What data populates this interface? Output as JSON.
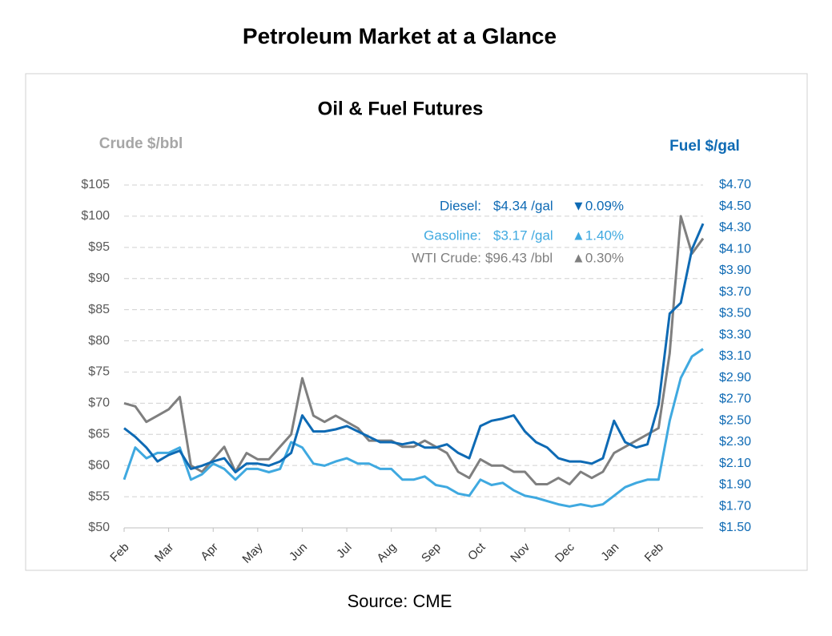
{
  "title": "Petroleum Market at a Glance",
  "source": "Source: CME",
  "chart_data": {
    "type": "line",
    "title": "Oil & Fuel Futures",
    "y_label": "Crude $/bbl",
    "y2_label": "Fuel $/gal",
    "categories": [
      "Feb",
      null,
      null,
      null,
      "Mar",
      null,
      null,
      null,
      "Apr",
      null,
      null,
      null,
      "May",
      null,
      null,
      null,
      "Jun",
      null,
      null,
      null,
      "Jul",
      null,
      null,
      null,
      "Aug",
      null,
      null,
      null,
      "Sep",
      null,
      null,
      null,
      "Oct",
      null,
      null,
      null,
      "Nov",
      null,
      null,
      null,
      "Dec",
      null,
      null,
      null,
      "Jan",
      null,
      null,
      null,
      "Feb",
      null,
      null,
      null,
      null
    ],
    "ylim": [
      50,
      105
    ],
    "yticks": [
      {
        "value": 50,
        "label": "$50"
      },
      {
        "value": 55,
        "label": "$55"
      },
      {
        "value": 60,
        "label": "$60"
      },
      {
        "value": 65,
        "label": "$65"
      },
      {
        "value": 70,
        "label": "$70"
      },
      {
        "value": 75,
        "label": "$75"
      },
      {
        "value": 80,
        "label": "$80"
      },
      {
        "value": 85,
        "label": "$85"
      },
      {
        "value": 90,
        "label": "$90"
      },
      {
        "value": 95,
        "label": "$95"
      },
      {
        "value": 100,
        "label": "$100"
      },
      {
        "value": 105,
        "label": "$105"
      }
    ],
    "y2lim": [
      1.5,
      4.7
    ],
    "y2ticks": [
      {
        "value": 1.5,
        "label": "$1.50"
      },
      {
        "value": 1.7,
        "label": "$1.70"
      },
      {
        "value": 1.9,
        "label": "$1.90"
      },
      {
        "value": 2.1,
        "label": "$2.10"
      },
      {
        "value": 2.3,
        "label": "$2.30"
      },
      {
        "value": 2.5,
        "label": "$2.50"
      },
      {
        "value": 2.7,
        "label": "$2.70"
      },
      {
        "value": 2.9,
        "label": "$2.90"
      },
      {
        "value": 3.1,
        "label": "$3.10"
      },
      {
        "value": 3.3,
        "label": "$3.30"
      },
      {
        "value": 3.5,
        "label": "$3.50"
      },
      {
        "value": 3.7,
        "label": "$3.70"
      },
      {
        "value": 3.9,
        "label": "$3.90"
      },
      {
        "value": 4.1,
        "label": "$4.10"
      },
      {
        "value": 4.3,
        "label": "$4.30"
      },
      {
        "value": 4.5,
        "label": "$4.50"
      },
      {
        "value": 4.7,
        "label": "$4.70"
      }
    ],
    "grid": true,
    "y_label_color": "#a6a6a6",
    "y2_label_color": "#0e6ab4",
    "y2_tick_color": "#0e6ab4",
    "series": [
      {
        "name": "Diesel:",
        "value_label": "$4.34 /gal",
        "change": "▼0.09%",
        "color": "#0e6ab4",
        "axis": "y2",
        "values": [
          2.43,
          2.35,
          2.25,
          2.12,
          2.18,
          2.22,
          2.05,
          2.08,
          2.12,
          2.15,
          2.02,
          2.1,
          2.1,
          2.08,
          2.12,
          2.2,
          2.55,
          2.4,
          2.4,
          2.42,
          2.45,
          2.4,
          2.35,
          2.3,
          2.3,
          2.28,
          2.3,
          2.25,
          2.25,
          2.28,
          2.2,
          2.15,
          2.45,
          2.5,
          2.52,
          2.55,
          2.4,
          2.3,
          2.25,
          2.15,
          2.12,
          2.12,
          2.1,
          2.15,
          2.5,
          2.3,
          2.25,
          2.28,
          2.65,
          3.5,
          3.6,
          4.1,
          4.34
        ]
      },
      {
        "name": "Gasoline:",
        "value_label": "$3.17 /gal",
        "change": "▲1.40%",
        "color": "#3fa9e0",
        "axis": "y2",
        "values": [
          1.95,
          2.25,
          2.15,
          2.2,
          2.2,
          2.25,
          1.95,
          2.0,
          2.1,
          2.05,
          1.95,
          2.05,
          2.05,
          2.02,
          2.05,
          2.3,
          2.25,
          2.1,
          2.08,
          2.12,
          2.15,
          2.1,
          2.1,
          2.05,
          2.05,
          1.95,
          1.95,
          1.98,
          1.9,
          1.88,
          1.82,
          1.8,
          1.95,
          1.9,
          1.92,
          1.85,
          1.8,
          1.78,
          1.75,
          1.72,
          1.7,
          1.72,
          1.7,
          1.72,
          1.8,
          1.88,
          1.92,
          1.95,
          1.95,
          2.5,
          2.9,
          3.1,
          3.17
        ]
      },
      {
        "name": "WTI Crude:",
        "value_label": "$96.43 /bbl",
        "change": "▲0.30%",
        "color": "#7f7f7f",
        "axis": "y",
        "values": [
          70,
          69.5,
          67,
          68,
          69,
          71,
          60,
          59,
          61,
          63,
          59,
          62,
          61,
          61,
          63,
          65,
          74,
          68,
          67,
          68,
          67,
          66,
          64,
          64,
          64,
          63,
          63,
          64,
          63,
          62,
          59,
          58,
          61,
          60,
          60,
          59,
          59,
          57,
          57,
          58,
          57,
          59,
          58,
          59,
          62,
          63,
          64,
          65,
          66,
          78,
          100,
          94,
          96.43
        ]
      }
    ]
  }
}
